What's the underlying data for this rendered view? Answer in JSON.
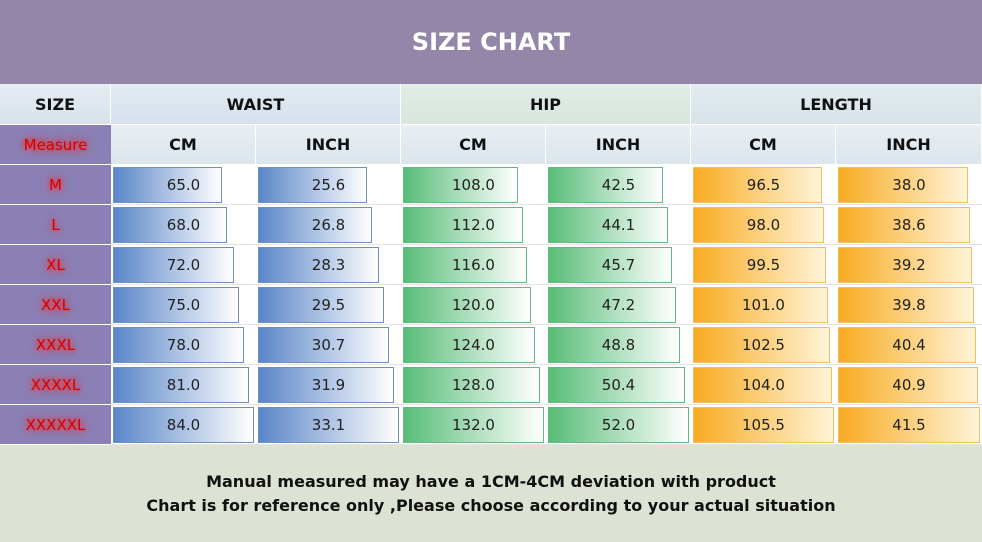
{
  "header": {
    "title": "SIZE CHART"
  },
  "table": {
    "corner": "SIZE",
    "groups": [
      "WAIST",
      "HIP",
      "LENGTH"
    ],
    "sub_corner": "Measure",
    "units": [
      "CM",
      "INCH",
      "CM",
      "INCH",
      "CM",
      "INCH"
    ],
    "rows": [
      [
        "M",
        "65.0",
        "25.6",
        "108.0",
        "42.5",
        "96.5",
        "38.0"
      ],
      [
        "L",
        "68.0",
        "26.8",
        "112.0",
        "44.1",
        "98.0",
        "38.6"
      ],
      [
        "XL",
        "72.0",
        "28.3",
        "116.0",
        "45.7",
        "99.5",
        "39.2"
      ],
      [
        "XXL",
        "75.0",
        "29.5",
        "120.0",
        "47.2",
        "101.0",
        "39.8"
      ],
      [
        "XXXL",
        "78.0",
        "30.7",
        "124.0",
        "48.8",
        "102.5",
        "40.4"
      ],
      [
        "XXXXL",
        "81.0",
        "31.9",
        "128.0",
        "50.4",
        "104.0",
        "40.9"
      ],
      [
        "XXXXXL",
        "84.0",
        "33.1",
        "132.0",
        "52.0",
        "105.5",
        "41.5"
      ]
    ]
  },
  "footer": {
    "lines": [
      "Manual measured may have a 1CM-4CM deviation with product",
      "Chart is for reference only ,Please choose according to your actual situation"
    ]
  }
}
